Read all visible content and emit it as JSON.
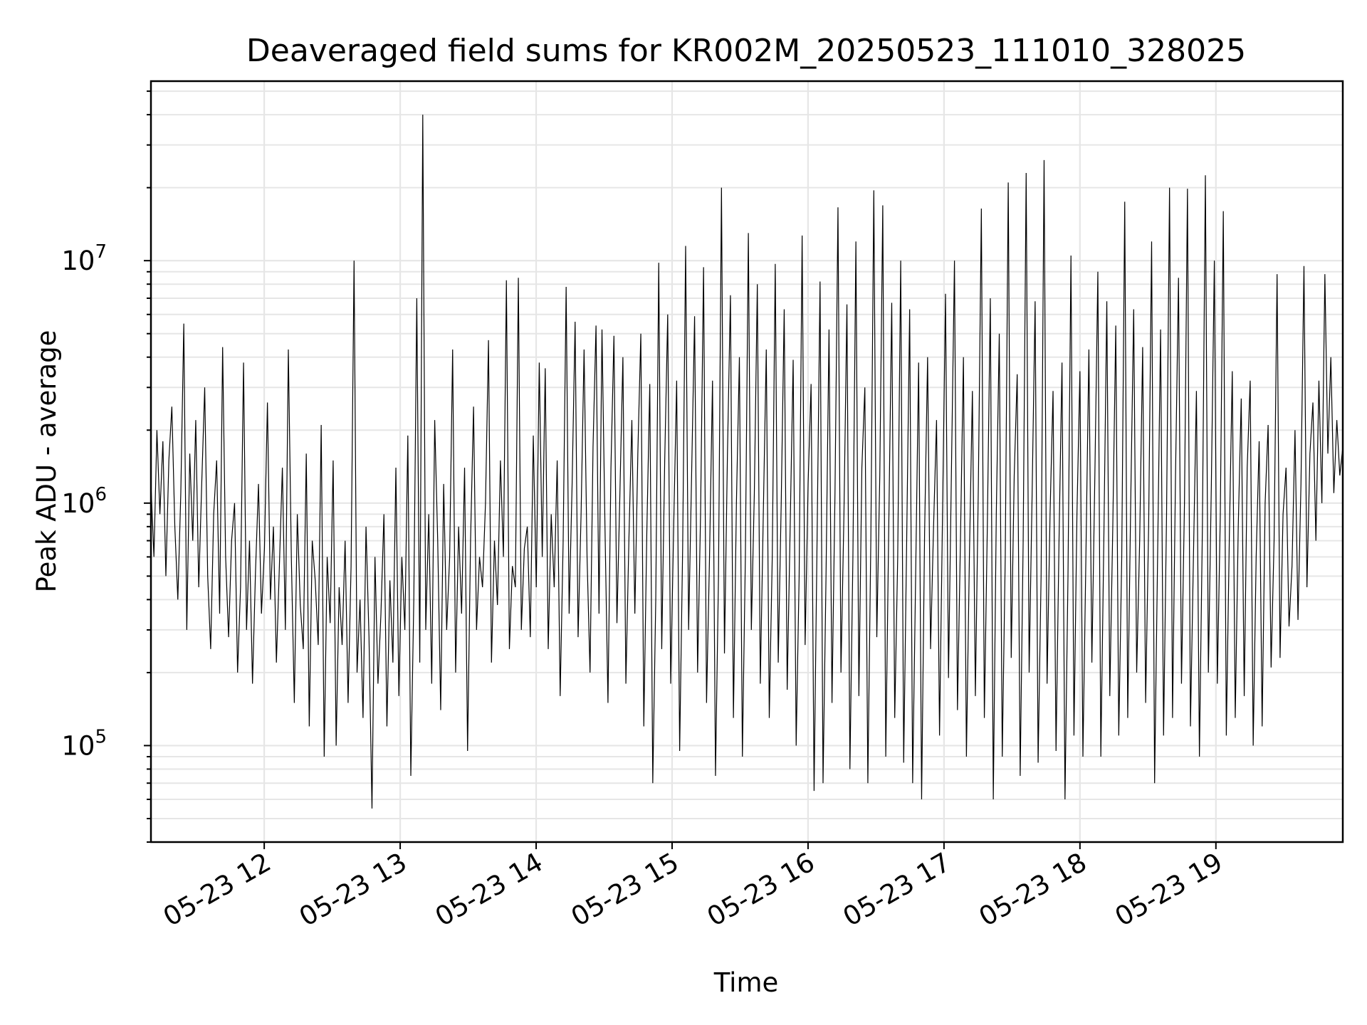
{
  "chart_data": {
    "type": "line",
    "title": "Deaveraged field sums for KR002M_20250523_111010_328025",
    "xlabel": "Time",
    "ylabel": "Peak ADU - average",
    "yscale": "log",
    "ylim": [
      40000,
      55000000
    ],
    "xlim": [
      "2025-05-23 11:10",
      "2025-05-23 19:56"
    ],
    "grid": true,
    "legend": "none",
    "line_color": "#000000",
    "x_tick_labels": [
      "05-23 12",
      "05-23 13",
      "05-23 14",
      "05-23 15",
      "05-23 16",
      "05-23 17",
      "05-23 18",
      "05-23 19"
    ],
    "x_tick_values": [
      "2025-05-23 12:00",
      "2025-05-23 13:00",
      "2025-05-23 14:00",
      "2025-05-23 15:00",
      "2025-05-23 16:00",
      "2025-05-23 17:00",
      "2025-05-23 18:00",
      "2025-05-23 19:00"
    ],
    "y_tick_labels": [
      {
        "base": "10",
        "exp": "5"
      },
      {
        "base": "10",
        "exp": "6"
      },
      {
        "base": "10",
        "exp": "7"
      }
    ],
    "y_tick_values": [
      100000,
      1000000,
      10000000
    ],
    "series": [
      {
        "x_start": "2025-05-23 11:10",
        "x_end": "2025-05-23 19:56",
        "values": [
          1200000,
          600000,
          2000000,
          900000,
          1800000,
          500000,
          1500000,
          2500000,
          800000,
          400000,
          1100000,
          5500000,
          300000,
          1600000,
          700000,
          2200000,
          450000,
          1200000,
          3000000,
          500000,
          250000,
          900000,
          1500000,
          350000,
          4400000,
          600000,
          280000,
          700000,
          1000000,
          200000,
          450000,
          3800000,
          300000,
          700000,
          180000,
          520000,
          1200000,
          350000,
          650000,
          2600000,
          400000,
          800000,
          220000,
          550000,
          1400000,
          300000,
          4300000,
          600000,
          150000,
          900000,
          380000,
          250000,
          1600000,
          120000,
          700000,
          480000,
          260000,
          2100000,
          90000,
          600000,
          320000,
          1500000,
          100000,
          450000,
          260000,
          700000,
          150000,
          550000,
          10000000,
          200000,
          400000,
          130000,
          800000,
          280000,
          55000,
          600000,
          180000,
          350000,
          900000,
          120000,
          480000,
          220000,
          1400000,
          160000,
          600000,
          300000,
          1900000,
          75000,
          400000,
          7000000,
          220000,
          40000000,
          300000,
          900000,
          180000,
          2200000,
          700000,
          140000,
          1200000,
          300000,
          600000,
          4300000,
          200000,
          800000,
          350000,
          1400000,
          95000,
          700000,
          2500000,
          300000,
          600000,
          450000,
          1000000,
          4700000,
          220000,
          700000,
          380000,
          1500000,
          600000,
          8300000,
          250000,
          550000,
          450000,
          8500000,
          300000,
          650000,
          800000,
          280000,
          1900000,
          450000,
          3800000,
          600000,
          3600000,
          250000,
          900000,
          450000,
          1500000,
          160000,
          700000,
          7800000,
          350000,
          1200000,
          5600000,
          280000,
          900000,
          4300000,
          600000,
          200000,
          1700000,
          5400000,
          350000,
          5200000,
          800000,
          150000,
          1400000,
          4900000,
          320000,
          1100000,
          4000000,
          180000,
          700000,
          2200000,
          350000,
          1600000,
          5000000,
          120000,
          750000,
          3100000,
          70000,
          400000,
          9800000,
          250000,
          1500000,
          6000000,
          180000,
          800000,
          3200000,
          95000,
          650000,
          11500000,
          300000,
          1300000,
          5900000,
          200000,
          900000,
          9400000,
          150000,
          600000,
          3200000,
          75000,
          500000,
          20000000,
          240000,
          1600000,
          7200000,
          130000,
          1000000,
          4000000,
          90000,
          600000,
          13000000,
          300000,
          1100000,
          8000000,
          180000,
          900000,
          4300000,
          130000,
          600000,
          9700000,
          220000,
          1000000,
          6300000,
          170000,
          800000,
          3900000,
          100000,
          500000,
          12700000,
          260000,
          1200000,
          3100000,
          65000,
          700000,
          8200000,
          70000,
          500000,
          5200000,
          150000,
          1100000,
          16600000,
          200000,
          900000,
          6600000,
          80000,
          600000,
          12000000,
          160000,
          1400000,
          3000000,
          70000,
          700000,
          19500000,
          280000,
          1300000,
          16900000,
          90000,
          800000,
          6700000,
          130000,
          600000,
          10000000,
          85000,
          700000,
          6300000,
          70000,
          500000,
          3800000,
          60000,
          750000,
          4000000,
          250000,
          800000,
          2200000,
          110000,
          900000,
          7300000,
          190000,
          1400000,
          10000000,
          140000,
          700000,
          4000000,
          90000,
          600000,
          2900000,
          160000,
          1200000,
          16400000,
          130000,
          800000,
          7000000,
          60000,
          900000,
          5000000,
          90000,
          600000,
          21000000,
          230000,
          1300000,
          3400000,
          75000,
          700000,
          23000000,
          200000,
          1100000,
          6800000,
          85000,
          500000,
          26000000,
          180000,
          900000,
          2900000,
          95000,
          700000,
          3800000,
          60000,
          500000,
          10500000,
          110000,
          900000,
          3500000,
          90000,
          600000,
          4300000,
          220000,
          1300000,
          9000000,
          90000,
          700000,
          6800000,
          160000,
          800000,
          5400000,
          110000,
          600000,
          17500000,
          130000,
          1000000,
          6300000,
          200000,
          700000,
          4400000,
          150000,
          800000,
          12000000,
          70000,
          600000,
          5200000,
          110000,
          900000,
          20000000,
          130000,
          1300000,
          8500000,
          180000,
          1000000,
          19800000,
          120000,
          600000,
          2900000,
          90000,
          800000,
          22500000,
          200000,
          1200000,
          10000000,
          180000,
          900000,
          16000000,
          110000,
          700000,
          3500000,
          130000,
          800000,
          2700000,
          160000,
          1400000,
          3200000,
          100000,
          600000,
          1800000,
          120000,
          1000000,
          2100000,
          210000,
          700000,
          8800000,
          230000,
          900000,
          1400000,
          310000,
          550000,
          2000000,
          330000,
          1200000,
          9500000,
          450000,
          1600000,
          2600000,
          700000,
          3200000,
          1000000,
          8800000,
          1600000,
          4000000,
          1100000,
          2200000,
          1300000,
          1700000
        ]
      }
    ]
  }
}
